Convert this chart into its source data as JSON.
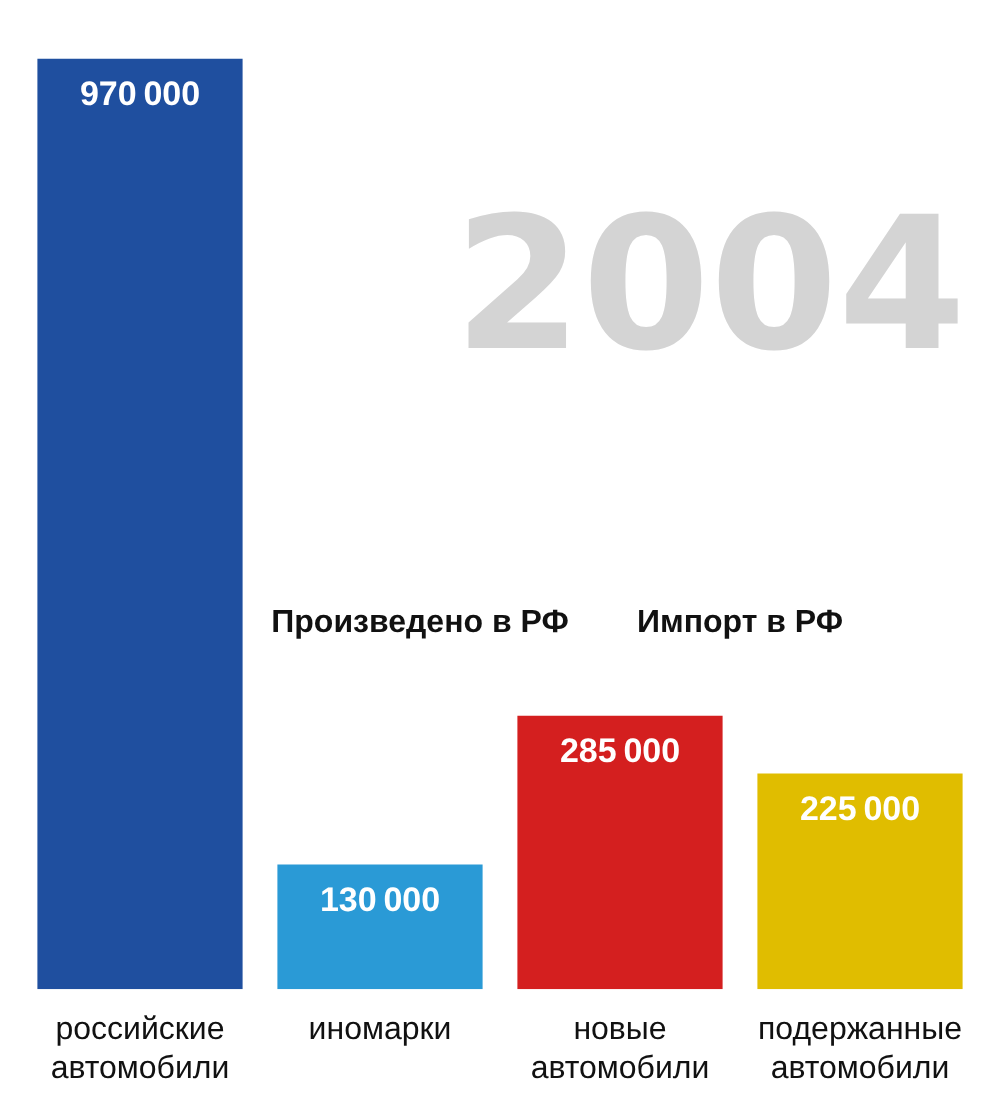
{
  "chart_data": {
    "type": "bar",
    "title": "2004",
    "categories": [
      "российские автомобили",
      "иномарки",
      "новые автомобили",
      "подержанные автомобили"
    ],
    "values": [
      970000,
      130000,
      285000,
      225000
    ],
    "colors": [
      "#1f4f9f",
      "#2a9ad6",
      "#d41f1f",
      "#e0bd00"
    ],
    "data_labels": true,
    "grid": false,
    "legend": false,
    "annotations": [
      "Произведено в РФ",
      "Импорт в РФ"
    ]
  }
}
